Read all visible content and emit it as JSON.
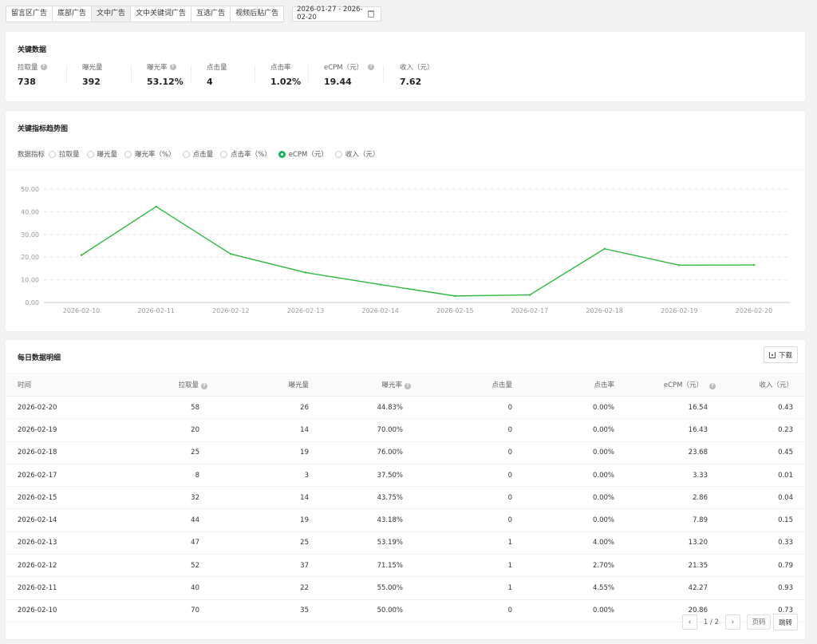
{
  "tabs": [
    "留言区广告",
    "底部广告",
    "文中广告",
    "文中关键词广告",
    "互选广告",
    "视频后贴广告"
  ],
  "date_range": "2026-01-27 - 2026-02-20",
  "key": {
    "title": "关键数据",
    "metrics": [
      {
        "label": "拉取量",
        "value": "738",
        "help": true
      },
      {
        "label": "曝光量",
        "value": "392",
        "help": false
      },
      {
        "label": "曝光率",
        "value": "53.12%",
        "help": true
      },
      {
        "label": "点击量",
        "value": "4",
        "help": false
      },
      {
        "label": "点击率",
        "value": "1.02%",
        "help": false
      },
      {
        "label": "eCPM（元）",
        "value": "19.44",
        "help": true
      },
      {
        "label": "收入（元）",
        "value": "7.62",
        "help": false
      }
    ]
  },
  "trend": {
    "title": "关键指标趋势图",
    "metric_label": "数据指标",
    "options": [
      "拉取量",
      "曝光量",
      "曝光率（%）",
      "点击量",
      "点击率（%）",
      "eCPM（元）",
      "收入（元）"
    ],
    "selected": "eCPM（元）"
  },
  "chart_data": {
    "type": "line",
    "x": [
      "2026-02-10",
      "2026-02-11",
      "2026-02-12",
      "2026-02-13",
      "2026-02-14",
      "2026-02-15",
      "2026-02-17",
      "2026-02-18",
      "2026-02-19",
      "2026-02-20"
    ],
    "values": [
      20.86,
      42.27,
      21.35,
      13.2,
      7.89,
      2.86,
      3.33,
      23.68,
      16.43,
      16.54
    ],
    "yticks": [
      "0.00",
      "10.00",
      "20.00",
      "30.00",
      "40.00",
      "50.00"
    ],
    "ylim": [
      0,
      50
    ],
    "grid": true,
    "color": "#2fb83f"
  },
  "table": {
    "title": "每日数据明细",
    "download": "下载",
    "headers": [
      "时间",
      "拉取量",
      "曝光量",
      "曝光率",
      "点击量",
      "点击率",
      "eCPM（元）",
      "收入（元）"
    ],
    "rows": [
      [
        "2026-02-20",
        "58",
        "26",
        "44.83%",
        "0",
        "0.00%",
        "16.54",
        "0.43"
      ],
      [
        "2026-02-19",
        "20",
        "14",
        "70.00%",
        "0",
        "0.00%",
        "16.43",
        "0.23"
      ],
      [
        "2026-02-18",
        "25",
        "19",
        "76.00%",
        "0",
        "0.00%",
        "23.68",
        "0.45"
      ],
      [
        "2026-02-17",
        "8",
        "3",
        "37.50%",
        "0",
        "0.00%",
        "3.33",
        "0.01"
      ],
      [
        "2026-02-15",
        "32",
        "14",
        "43.75%",
        "0",
        "0.00%",
        "2.86",
        "0.04"
      ],
      [
        "2026-02-14",
        "44",
        "19",
        "43.18%",
        "0",
        "0.00%",
        "7.89",
        "0.15"
      ],
      [
        "2026-02-13",
        "47",
        "25",
        "53.19%",
        "1",
        "4.00%",
        "13.20",
        "0.33"
      ],
      [
        "2026-02-12",
        "52",
        "37",
        "71.15%",
        "1",
        "2.70%",
        "21.35",
        "0.79"
      ],
      [
        "2026-02-11",
        "40",
        "22",
        "55.00%",
        "1",
        "4.55%",
        "42.27",
        "0.93"
      ],
      [
        "2026-02-10",
        "70",
        "35",
        "50.00%",
        "0",
        "0.00%",
        "20.86",
        "0.73"
      ]
    ]
  },
  "pager": {
    "page": "1 / 2",
    "input_placeholder": "页码",
    "jump": "跳转"
  }
}
